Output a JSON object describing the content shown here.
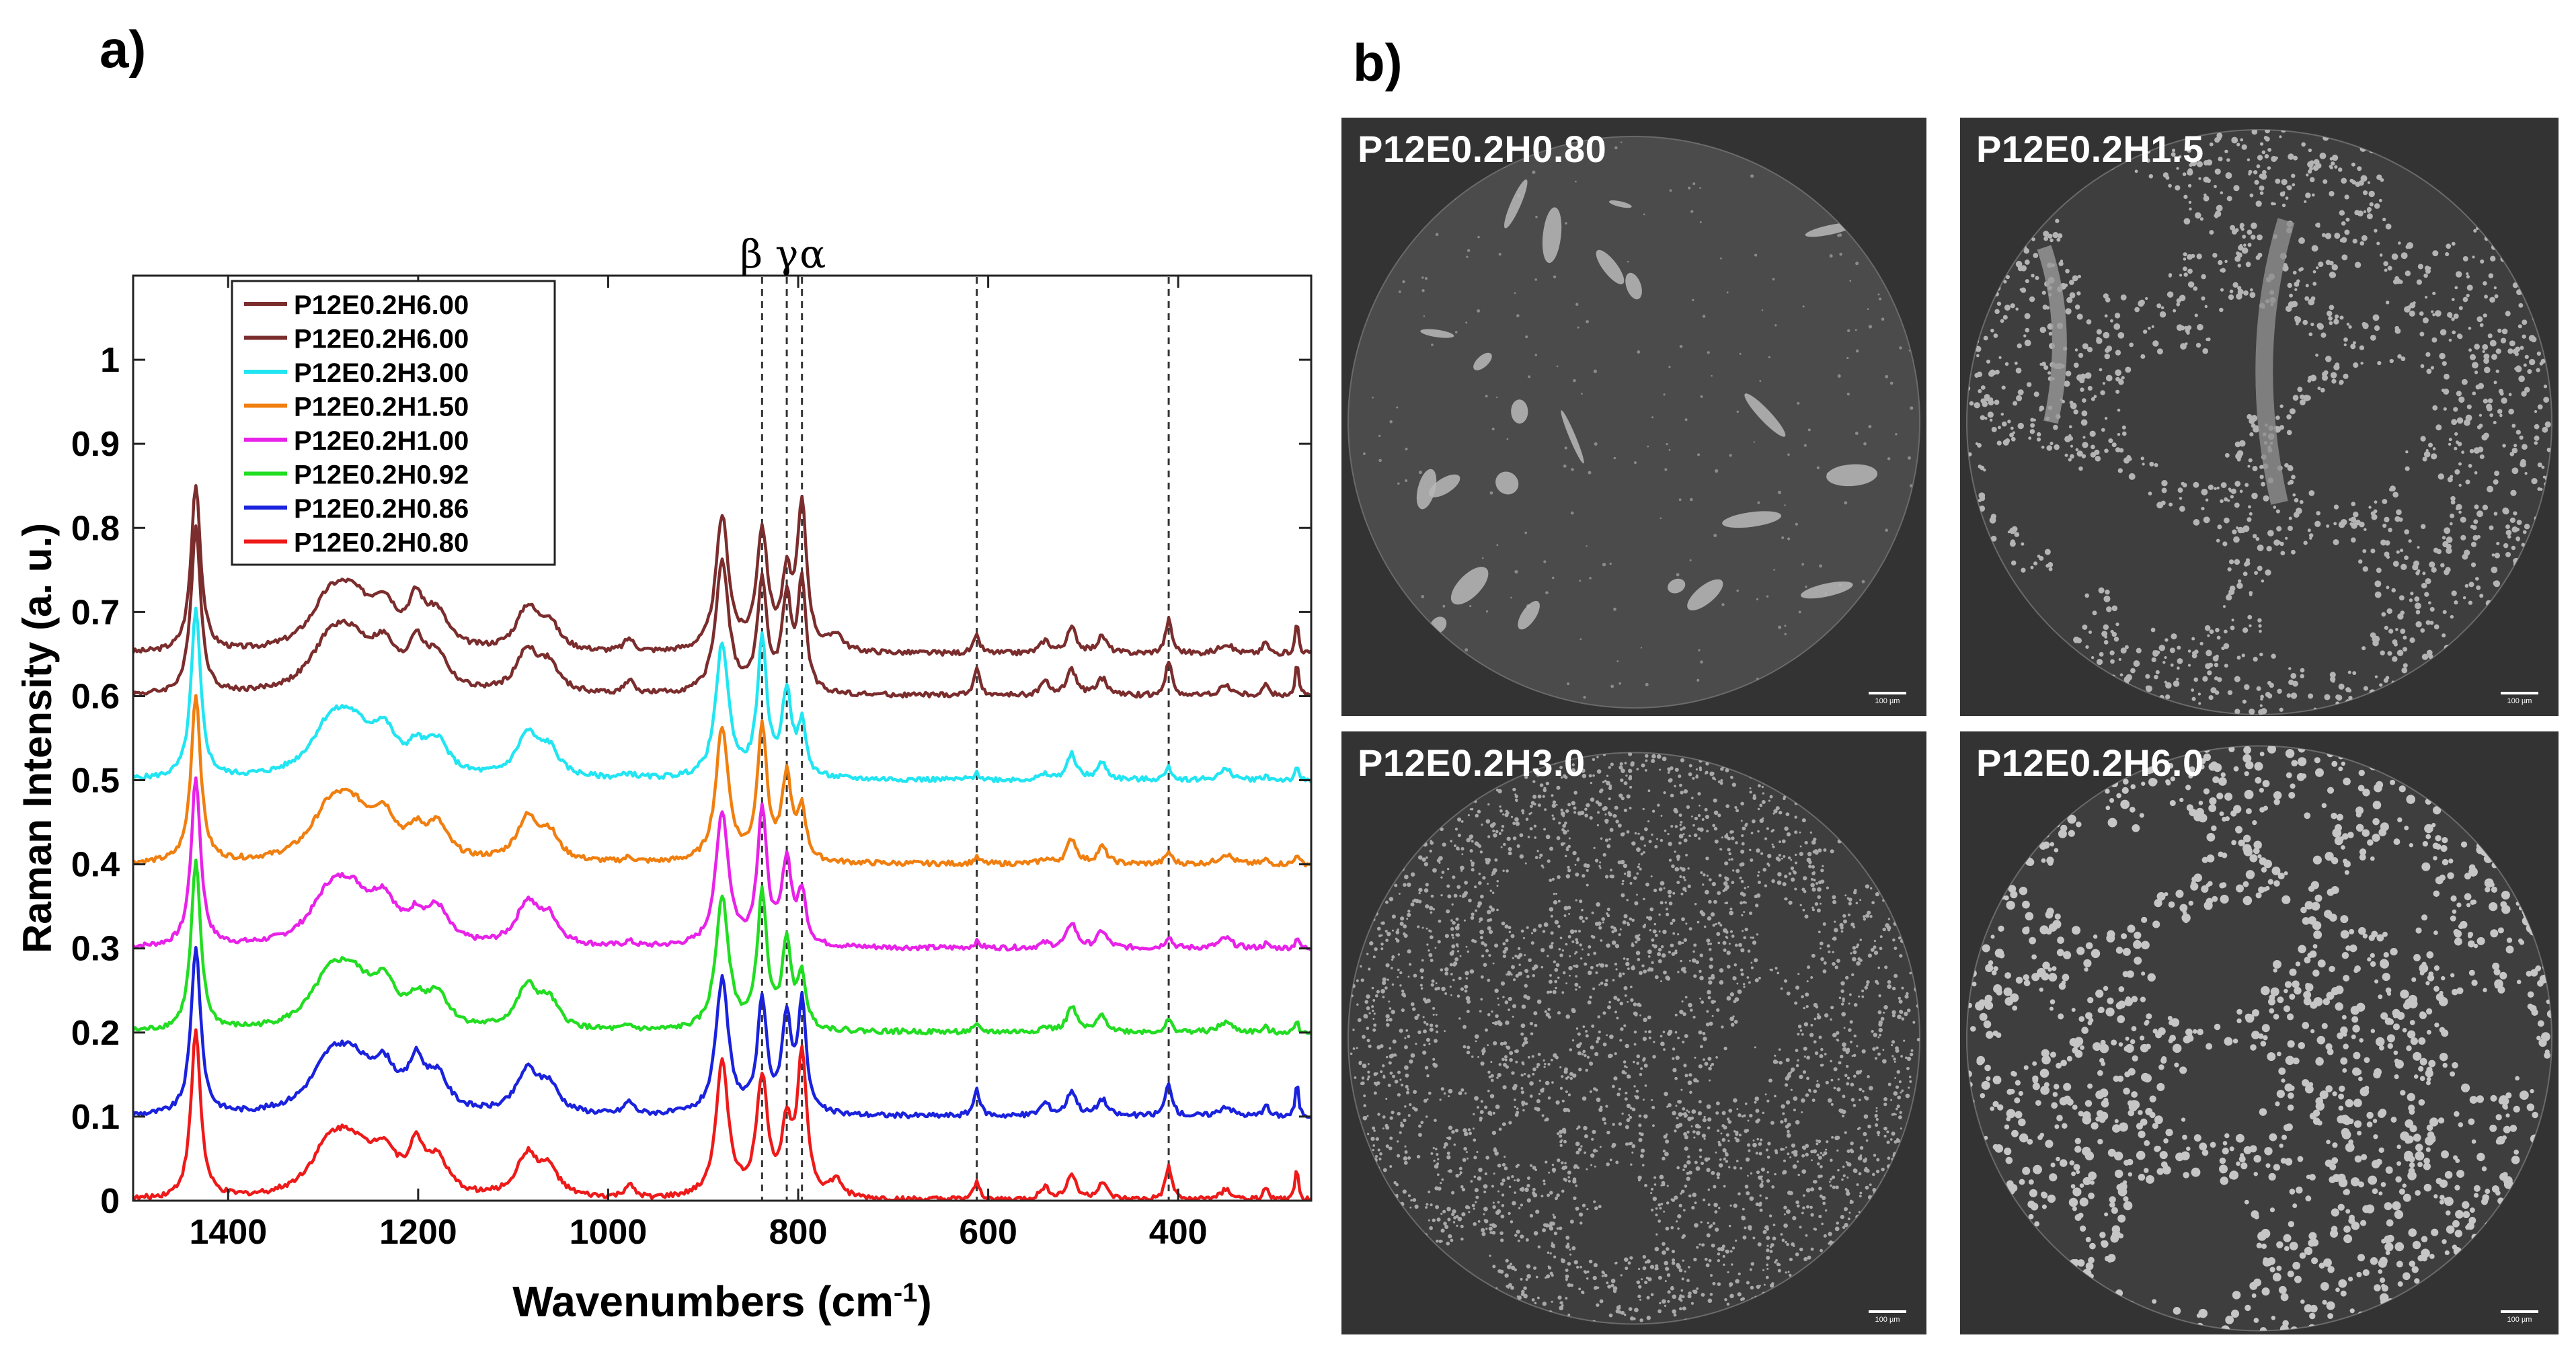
{
  "panels": {
    "a_label": "a)",
    "b_label": "b)"
  },
  "chart_data": {
    "type": "line",
    "xlabel": "Wavenumbers (cm",
    "xlabel_sup": "-1",
    "xlabel_tail": ")",
    "ylabel": "Raman Intensity (a. u.)",
    "xlim": [
      1500,
      260
    ],
    "ylim": [
      0,
      1.1
    ],
    "x_ticks": [
      1400,
      1200,
      1000,
      800,
      600,
      400
    ],
    "y_ticks": [
      0,
      0.1,
      0.2,
      0.3,
      0.4,
      0.5,
      0.6,
      0.7,
      0.8,
      0.9,
      1
    ],
    "y_tick_labels": [
      "0",
      "0.1",
      "0.2",
      "0.3",
      "0.4",
      "0.5",
      "0.6",
      "0.7",
      "0.8",
      "0.9",
      "1"
    ],
    "grid": false,
    "legend_position": "top-left",
    "phase_markers": [
      {
        "label": "β",
        "x": 838
      },
      {
        "label": "γ",
        "x": 812
      },
      {
        "label": "α",
        "x": 796
      }
    ],
    "dashed_lines_x": [
      838,
      812,
      796,
      612,
      410
    ],
    "series": [
      {
        "name": "P12E0.2H6.00",
        "color": "#7b2d2d",
        "offset": 0.65,
        "profile": "alpha"
      },
      {
        "name": "P12E0.2H6.00",
        "color": "#7b2d2d",
        "offset": 0.6,
        "profile": "mixed"
      },
      {
        "name": "P12E0.2H3.00",
        "color": "#22e5f2",
        "offset": 0.5,
        "profile": "beta"
      },
      {
        "name": "P12E0.2H1.50",
        "color": "#f07f10",
        "offset": 0.4,
        "profile": "beta"
      },
      {
        "name": "P12E0.2H1.00",
        "color": "#e822e8",
        "offset": 0.3,
        "profile": "beta"
      },
      {
        "name": "P12E0.2H0.92",
        "color": "#22dd22",
        "offset": 0.2,
        "profile": "beta"
      },
      {
        "name": "P12E0.2H0.86",
        "color": "#1a22dd",
        "offset": 0.1,
        "profile": "mixed"
      },
      {
        "name": "P12E0.2H0.80",
        "color": "#ee1a1a",
        "offset": 0.0,
        "profile": "alpha"
      }
    ]
  },
  "micrographs": [
    {
      "label": "P12E0.2H0.80",
      "style": "flakes"
    },
    {
      "label": "P12E0.2H1.5",
      "style": "medium"
    },
    {
      "label": "P12E0.2H3.0",
      "style": "fine"
    },
    {
      "label": "P12E0.2H6.0",
      "style": "coarse"
    }
  ],
  "scale_bar": "100 µm"
}
